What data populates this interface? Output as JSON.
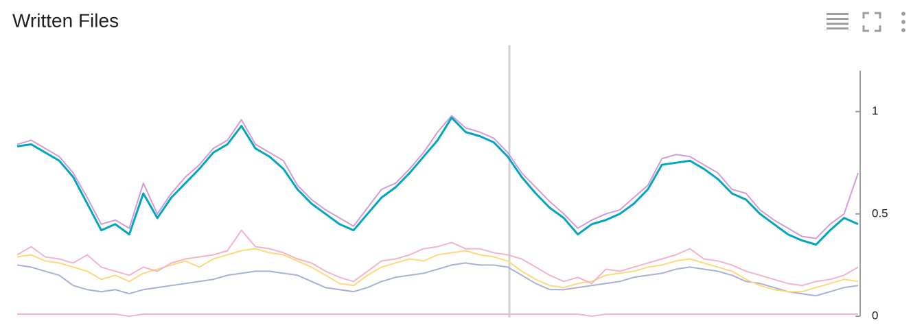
{
  "chart_data": {
    "type": "line",
    "title": "Written Files",
    "ylim": [
      0,
      1.2
    ],
    "yticks": [
      0,
      0.5,
      1
    ],
    "series": [
      {
        "color": "#a6b1d6",
        "values": [
          0.25,
          0.24,
          0.22,
          0.2,
          0.15,
          0.13,
          0.12,
          0.13,
          0.11,
          0.13,
          0.14,
          0.15,
          0.16,
          0.17,
          0.18,
          0.2,
          0.21,
          0.22,
          0.22,
          0.21,
          0.2,
          0.17,
          0.14,
          0.13,
          0.12,
          0.14,
          0.17,
          0.19,
          0.2,
          0.21,
          0.23,
          0.25,
          0.26,
          0.25,
          0.25,
          0.24,
          0.2,
          0.16,
          0.13,
          0.13,
          0.14,
          0.15,
          0.16,
          0.17,
          0.19,
          0.2,
          0.21,
          0.23,
          0.24,
          0.23,
          0.22,
          0.2,
          0.17,
          0.16,
          0.14,
          0.12,
          0.11,
          0.1,
          0.12,
          0.14,
          0.15
        ]
      },
      {
        "color": "#ffd87a",
        "values": [
          0.29,
          0.3,
          0.27,
          0.26,
          0.24,
          0.22,
          0.18,
          0.2,
          0.17,
          0.21,
          0.23,
          0.25,
          0.27,
          0.24,
          0.28,
          0.3,
          0.32,
          0.33,
          0.31,
          0.3,
          0.27,
          0.24,
          0.2,
          0.16,
          0.15,
          0.2,
          0.24,
          0.26,
          0.28,
          0.27,
          0.3,
          0.31,
          0.32,
          0.3,
          0.29,
          0.27,
          0.22,
          0.18,
          0.15,
          0.14,
          0.16,
          0.17,
          0.2,
          0.21,
          0.22,
          0.24,
          0.25,
          0.27,
          0.28,
          0.26,
          0.24,
          0.22,
          0.18,
          0.15,
          0.13,
          0.12,
          0.12,
          0.14,
          0.16,
          0.18,
          0.17
        ]
      },
      {
        "color": "#f4b3c8",
        "values": [
          0.3,
          0.34,
          0.29,
          0.28,
          0.26,
          0.3,
          0.24,
          0.22,
          0.2,
          0.24,
          0.22,
          0.26,
          0.28,
          0.29,
          0.3,
          0.32,
          0.42,
          0.34,
          0.33,
          0.31,
          0.28,
          0.26,
          0.22,
          0.19,
          0.17,
          0.22,
          0.27,
          0.28,
          0.3,
          0.33,
          0.34,
          0.36,
          0.33,
          0.33,
          0.31,
          0.3,
          0.28,
          0.24,
          0.2,
          0.17,
          0.19,
          0.16,
          0.23,
          0.22,
          0.24,
          0.26,
          0.28,
          0.3,
          0.33,
          0.28,
          0.27,
          0.25,
          0.22,
          0.2,
          0.18,
          0.16,
          0.15,
          0.17,
          0.18,
          0.2,
          0.24
        ]
      },
      {
        "color": "#f4b3c8",
        "values": [
          0.01,
          0.01,
          0.01,
          0.01,
          0.01,
          0.01,
          0.01,
          0.01,
          0,
          0.01,
          0.01,
          0.01,
          0.01,
          0.01,
          0.01,
          0.01,
          0.01,
          0.01,
          0.01,
          0.01,
          0.01,
          0.01,
          0.01,
          0.01,
          0.01,
          0.01,
          0.01,
          0.01,
          0.01,
          0.01,
          0.01,
          0.01,
          0.01,
          0.01,
          0.01,
          0.01,
          0.01,
          0.01,
          0.01,
          0.01,
          0.01,
          0,
          0.01,
          0.01,
          0.01,
          0.01,
          0.01,
          0.01,
          0.01,
          0.01,
          0.01,
          0.01,
          0.01,
          0.01,
          0.01,
          0.01,
          0.01,
          0.01,
          0.01,
          0.01,
          0.01
        ]
      },
      {
        "color": "#d39ad9",
        "values": [
          0.84,
          0.86,
          0.82,
          0.78,
          0.7,
          0.58,
          0.45,
          0.47,
          0.43,
          0.65,
          0.5,
          0.6,
          0.68,
          0.74,
          0.82,
          0.86,
          0.96,
          0.84,
          0.8,
          0.76,
          0.64,
          0.57,
          0.52,
          0.48,
          0.44,
          0.53,
          0.62,
          0.65,
          0.72,
          0.8,
          0.9,
          0.98,
          0.92,
          0.9,
          0.87,
          0.8,
          0.7,
          0.63,
          0.56,
          0.5,
          0.43,
          0.47,
          0.5,
          0.52,
          0.58,
          0.64,
          0.77,
          0.79,
          0.78,
          0.74,
          0.7,
          0.62,
          0.6,
          0.52,
          0.47,
          0.43,
          0.39,
          0.38,
          0.45,
          0.5,
          0.7
        ]
      },
      {
        "color": "#00a5c2",
        "values": [
          0.83,
          0.84,
          0.8,
          0.76,
          0.68,
          0.55,
          0.42,
          0.45,
          0.4,
          0.6,
          0.48,
          0.58,
          0.65,
          0.72,
          0.8,
          0.84,
          0.93,
          0.82,
          0.78,
          0.72,
          0.62,
          0.55,
          0.5,
          0.45,
          0.42,
          0.5,
          0.58,
          0.63,
          0.7,
          0.78,
          0.86,
          0.97,
          0.9,
          0.88,
          0.85,
          0.78,
          0.68,
          0.6,
          0.53,
          0.48,
          0.4,
          0.45,
          0.47,
          0.5,
          0.55,
          0.62,
          0.74,
          0.75,
          0.76,
          0.72,
          0.67,
          0.6,
          0.57,
          0.5,
          0.45,
          0.4,
          0.37,
          0.35,
          0.42,
          0.48,
          0.45
        ]
      }
    ]
  }
}
